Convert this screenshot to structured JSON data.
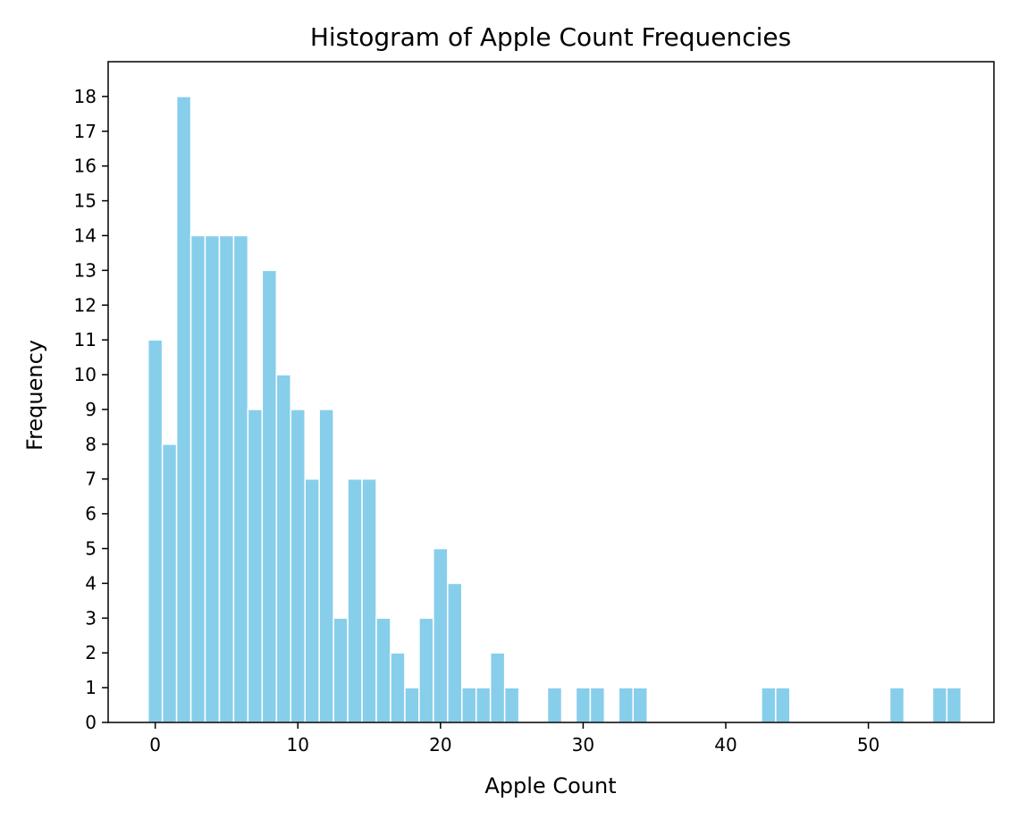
{
  "chart_data": {
    "type": "bar",
    "title": "Histogram of Apple Count Frequencies",
    "xlabel": "Apple Count",
    "ylabel": "Frequency",
    "x": [
      0,
      1,
      2,
      3,
      4,
      5,
      6,
      7,
      8,
      9,
      10,
      11,
      12,
      13,
      14,
      15,
      16,
      17,
      18,
      19,
      20,
      21,
      22,
      23,
      24,
      25,
      28,
      30,
      31,
      33,
      34,
      43,
      44,
      52,
      55,
      56
    ],
    "values": [
      11,
      8,
      18,
      14,
      14,
      14,
      14,
      9,
      13,
      10,
      9,
      7,
      9,
      3,
      7,
      7,
      3,
      2,
      1,
      3,
      5,
      4,
      1,
      1,
      2,
      1,
      1,
      1,
      1,
      1,
      1,
      1,
      1,
      1,
      1,
      1
    ],
    "xlim": [
      -3.3,
      58.8
    ],
    "ylim": [
      0,
      19
    ],
    "xticks": [
      0,
      10,
      20,
      30,
      40,
      50
    ],
    "yticks": [
      0,
      1,
      2,
      3,
      4,
      5,
      6,
      7,
      8,
      9,
      10,
      11,
      12,
      13,
      14,
      15,
      16,
      17,
      18
    ],
    "bar_color": "#87ceeb",
    "bar_edge_color": "#ffffff",
    "grid": false,
    "legend": "none"
  }
}
